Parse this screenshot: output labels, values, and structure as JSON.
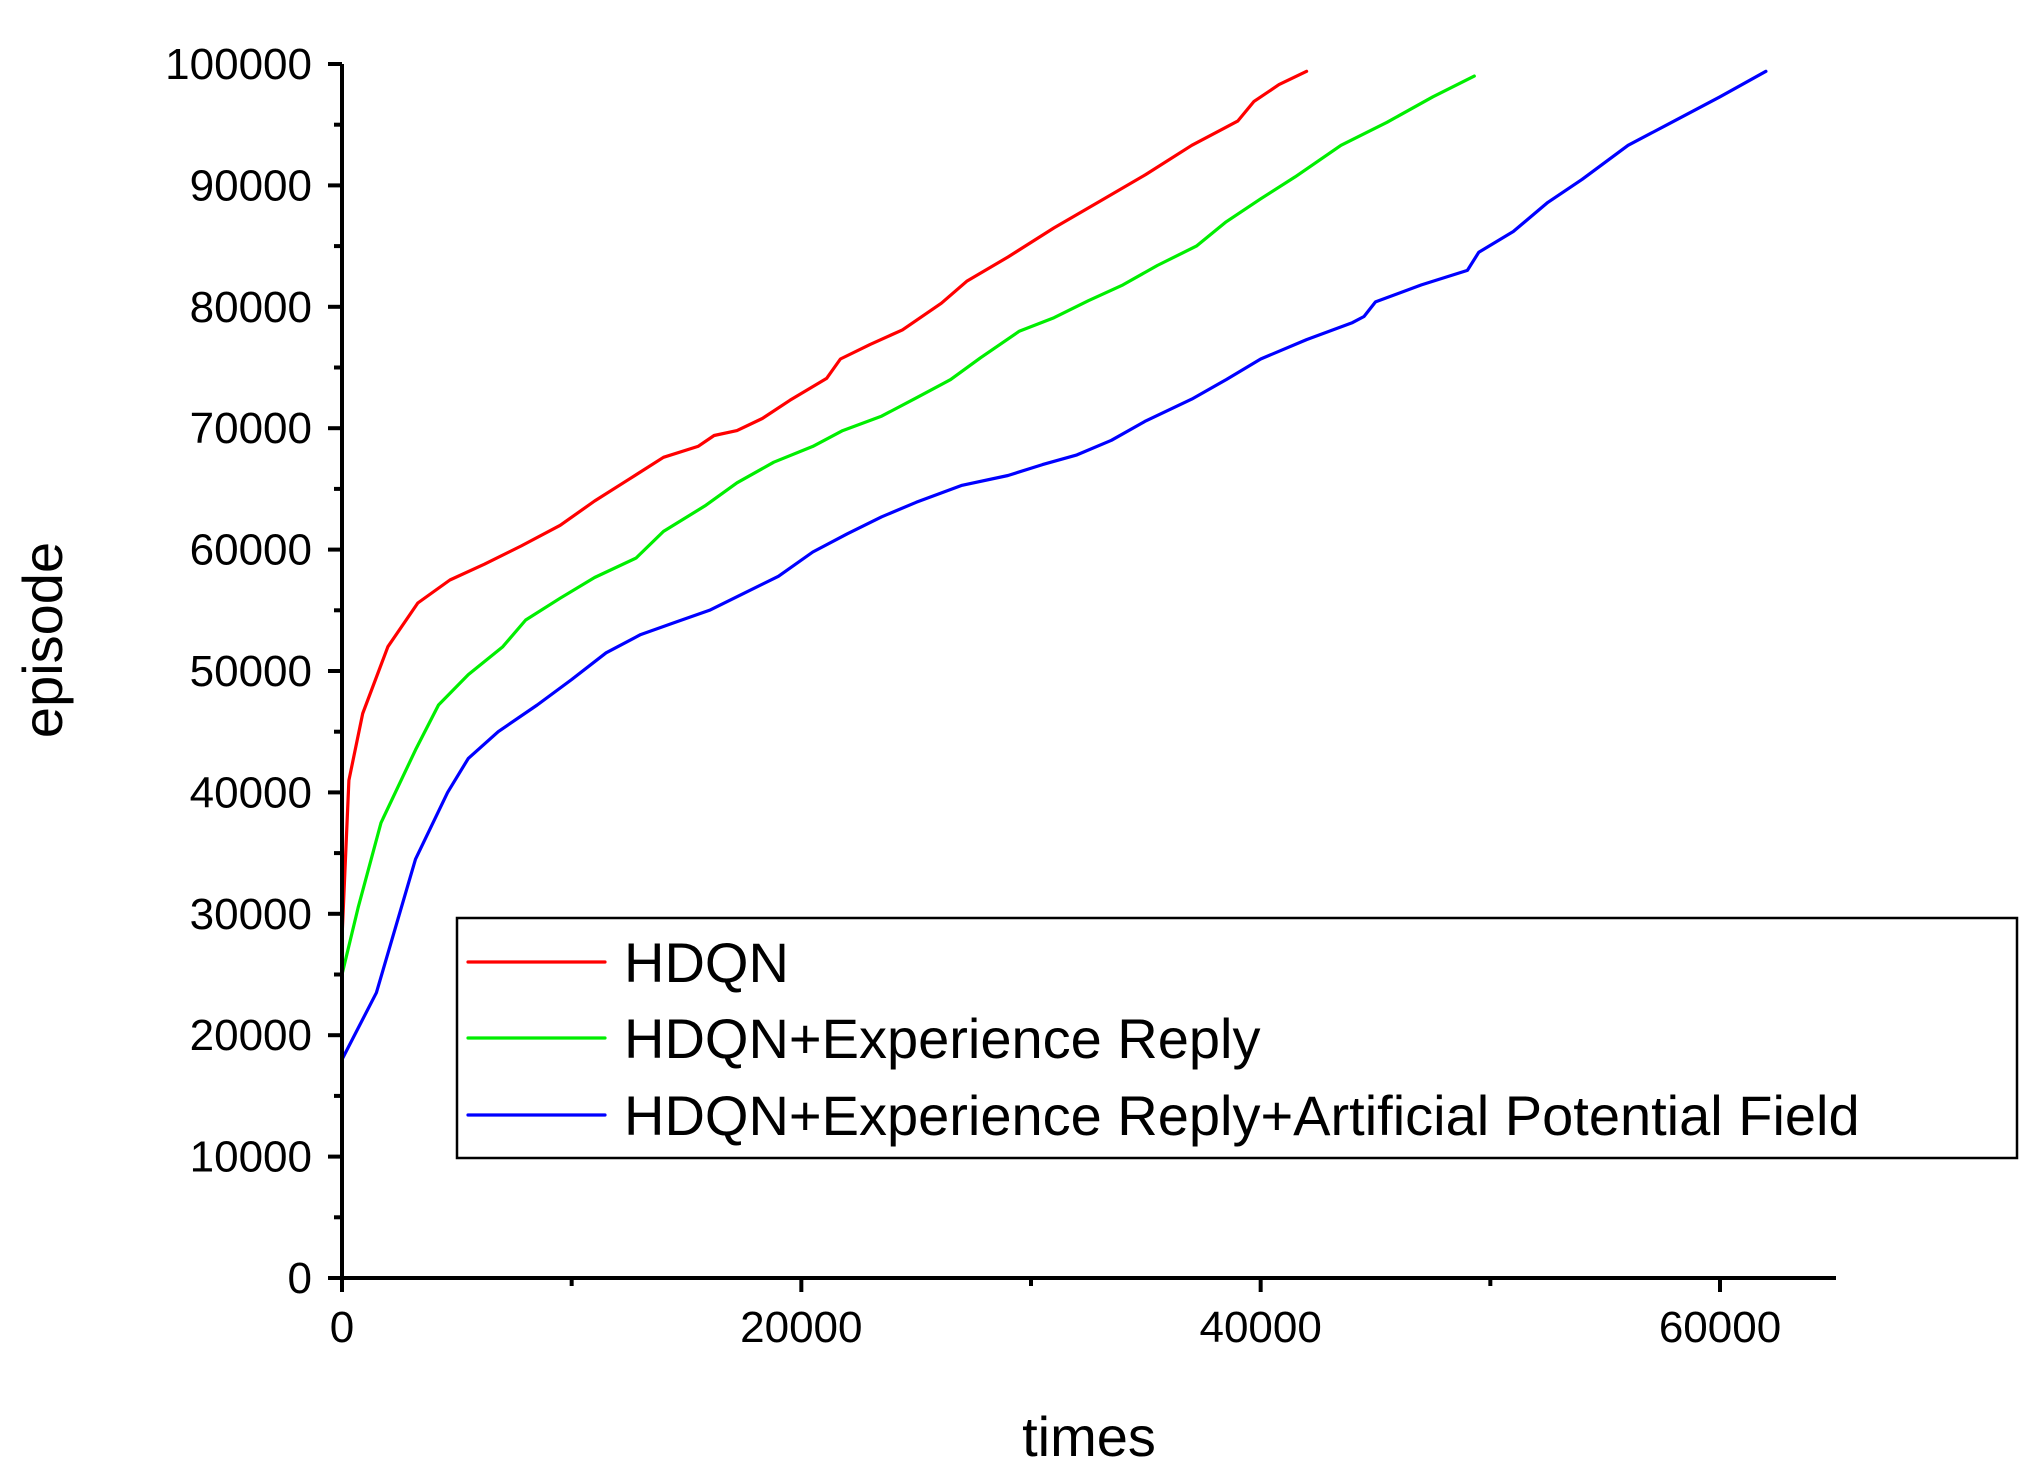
{
  "chart_data": {
    "type": "line",
    "title": "",
    "xlabel": "times",
    "ylabel": "episode",
    "xlim": [
      0,
      65000
    ],
    "ylim": [
      0,
      100000
    ],
    "x_ticks": [
      0,
      20000,
      40000,
      60000
    ],
    "x_tick_labels": [
      "0",
      "20000",
      "40000",
      "60000"
    ],
    "y_ticks": [
      0,
      10000,
      20000,
      30000,
      40000,
      50000,
      60000,
      70000,
      80000,
      90000,
      100000
    ],
    "y_tick_labels": [
      "0",
      "10000",
      "20000",
      "30000",
      "40000",
      "50000",
      "60000",
      "70000",
      "80000",
      "90000",
      "100000"
    ],
    "grid": false,
    "legend_position": "bottom-right",
    "series": [
      {
        "name": "HDQN",
        "color": "#ff0000",
        "points": [
          [
            0,
            28000
          ],
          [
            300,
            41000
          ],
          [
            900,
            46500
          ],
          [
            2000,
            52000
          ],
          [
            3300,
            55600
          ],
          [
            4700,
            57500
          ],
          [
            6200,
            58800
          ],
          [
            7800,
            60300
          ],
          [
            9500,
            62000
          ],
          [
            11000,
            64000
          ],
          [
            12500,
            65800
          ],
          [
            14000,
            67600
          ],
          [
            15500,
            68500
          ],
          [
            16200,
            69400
          ],
          [
            17200,
            69800
          ],
          [
            18300,
            70800
          ],
          [
            19500,
            72300
          ],
          [
            21100,
            74100
          ],
          [
            21700,
            75700
          ],
          [
            23000,
            76900
          ],
          [
            24400,
            78100
          ],
          [
            26100,
            80300
          ],
          [
            27200,
            82100
          ],
          [
            29000,
            84100
          ],
          [
            31000,
            86500
          ],
          [
            33000,
            88700
          ],
          [
            35000,
            90900
          ],
          [
            37000,
            93300
          ],
          [
            39000,
            95300
          ],
          [
            39700,
            96900
          ],
          [
            40800,
            98300
          ],
          [
            42000,
            99400
          ]
        ]
      },
      {
        "name": "HDQN+Experience Reply",
        "color": "#00ee00",
        "points": [
          [
            0,
            25000
          ],
          [
            700,
            30500
          ],
          [
            1700,
            37500
          ],
          [
            3200,
            43500
          ],
          [
            4200,
            47200
          ],
          [
            5500,
            49700
          ],
          [
            7000,
            52000
          ],
          [
            8000,
            54200
          ],
          [
            9500,
            56000
          ],
          [
            11000,
            57700
          ],
          [
            12800,
            59300
          ],
          [
            14000,
            61500
          ],
          [
            15800,
            63600
          ],
          [
            17200,
            65500
          ],
          [
            18800,
            67200
          ],
          [
            20500,
            68500
          ],
          [
            21800,
            69800
          ],
          [
            23500,
            71000
          ],
          [
            25000,
            72500
          ],
          [
            26500,
            74000
          ],
          [
            27800,
            75800
          ],
          [
            29500,
            78000
          ],
          [
            31000,
            79100
          ],
          [
            32500,
            80500
          ],
          [
            34000,
            81800
          ],
          [
            35500,
            83400
          ],
          [
            37200,
            85000
          ],
          [
            38500,
            87000
          ],
          [
            40000,
            88900
          ],
          [
            41500,
            90700
          ],
          [
            43500,
            93300
          ],
          [
            45500,
            95200
          ],
          [
            47500,
            97300
          ],
          [
            49300,
            99000
          ]
        ]
      },
      {
        "name": "HDQN+Experience Reply+Artificial Potential Field",
        "color": "#0000ff",
        "points": [
          [
            0,
            18000
          ],
          [
            1500,
            23500
          ],
          [
            3200,
            34500
          ],
          [
            4600,
            40000
          ],
          [
            5500,
            42800
          ],
          [
            6800,
            45000
          ],
          [
            8500,
            47200
          ],
          [
            10000,
            49300
          ],
          [
            11500,
            51500
          ],
          [
            13000,
            53000
          ],
          [
            14500,
            54000
          ],
          [
            16000,
            55000
          ],
          [
            17500,
            56400
          ],
          [
            19000,
            57800
          ],
          [
            20500,
            59800
          ],
          [
            22000,
            61300
          ],
          [
            23500,
            62700
          ],
          [
            25000,
            63900
          ],
          [
            27000,
            65300
          ],
          [
            29000,
            66100
          ],
          [
            30500,
            67000
          ],
          [
            32000,
            67800
          ],
          [
            33500,
            69000
          ],
          [
            35000,
            70600
          ],
          [
            37000,
            72400
          ],
          [
            38500,
            74000
          ],
          [
            40000,
            75700
          ],
          [
            42000,
            77300
          ],
          [
            44000,
            78700
          ],
          [
            44500,
            79200
          ],
          [
            45000,
            80400
          ],
          [
            47000,
            81800
          ],
          [
            49000,
            83000
          ],
          [
            49500,
            84500
          ],
          [
            51000,
            86200
          ],
          [
            52500,
            88600
          ],
          [
            54000,
            90500
          ],
          [
            56000,
            93300
          ],
          [
            58000,
            95300
          ],
          [
            60000,
            97300
          ],
          [
            62000,
            99400
          ]
        ]
      }
    ]
  }
}
